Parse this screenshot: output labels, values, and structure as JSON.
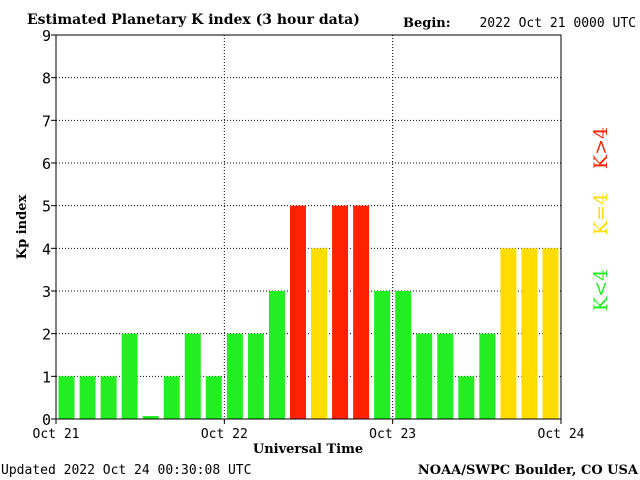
{
  "header": {
    "title": "Estimated Planetary K index (3 hour data)",
    "begin_label": "Begin:",
    "begin_value": "2022 Oct 21 0000 UTC"
  },
  "footer": {
    "updated": "Updated 2022 Oct 24 00:30:08 UTC",
    "source": "NOAA/SWPC Boulder, CO USA"
  },
  "legend": {
    "low": "K<4",
    "mid": "K=4",
    "high": "K>4"
  },
  "colors": {
    "low": "#22ee22",
    "mid": "#ffdd00",
    "high": "#ff2200",
    "axis": "#000000",
    "grid": "#000000"
  },
  "chart_data": {
    "type": "bar",
    "title": "Estimated Planetary K index (3 hour data)",
    "xlabel": "Universal Time",
    "ylabel": "Kp index",
    "ylim": [
      0,
      9
    ],
    "yticks": [
      "0",
      "1",
      "2",
      "3",
      "4",
      "5",
      "6",
      "7",
      "8",
      "9"
    ],
    "xticks": [
      "Oct 21",
      "Oct 22",
      "Oct 23",
      "Oct 24"
    ],
    "grid": true,
    "values": [
      1,
      1,
      1,
      2,
      0.07,
      1,
      2,
      1,
      2,
      2,
      3,
      5,
      4,
      5,
      5,
      3,
      3,
      2,
      2,
      1,
      2,
      4,
      4,
      4
    ]
  }
}
